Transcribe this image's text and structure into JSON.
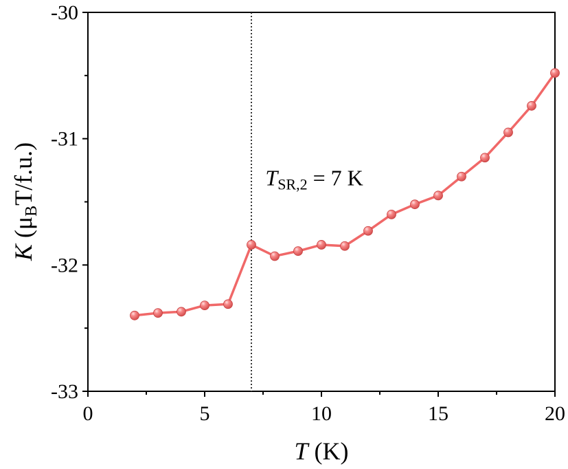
{
  "chart_data": {
    "type": "line",
    "xlabel_var": "T",
    "xlabel_unit": "(K)",
    "ylabel_var": "K",
    "ylabel_unit_pre": "(μ",
    "ylabel_unit_sub": "B",
    "ylabel_unit_post": "T/f.u.)",
    "xlim": [
      0,
      20
    ],
    "ylim": [
      -33,
      -30
    ],
    "xticks": [
      0,
      5,
      10,
      15,
      20
    ],
    "xtick_labels": [
      "0",
      "5",
      "10",
      "15",
      "20"
    ],
    "yticks": [
      -30,
      -31,
      -32,
      -33
    ],
    "ytick_labels": [
      "-30",
      "-31",
      "-32",
      "-33"
    ],
    "grid": false,
    "series": [
      {
        "color": "#f06868",
        "marker": "sphere",
        "x": [
          2,
          3,
          4,
          5,
          6,
          7,
          8,
          9,
          10,
          11,
          12,
          13,
          14,
          15,
          16,
          17,
          18,
          19,
          20
        ],
        "y": [
          -32.4,
          -32.38,
          -32.37,
          -32.32,
          -32.31,
          -31.84,
          -31.93,
          -31.89,
          -31.84,
          -31.85,
          -31.73,
          -31.6,
          -31.52,
          -31.45,
          -31.3,
          -31.15,
          -30.95,
          -30.74,
          -30.48
        ]
      }
    ],
    "vline": {
      "x": 7,
      "style": "dotted",
      "color": "#333333"
    },
    "annotation": {
      "var": "T",
      "sub": "SR,2",
      "rest": " = 7 K",
      "x": 7.6,
      "y": -31.37
    }
  }
}
